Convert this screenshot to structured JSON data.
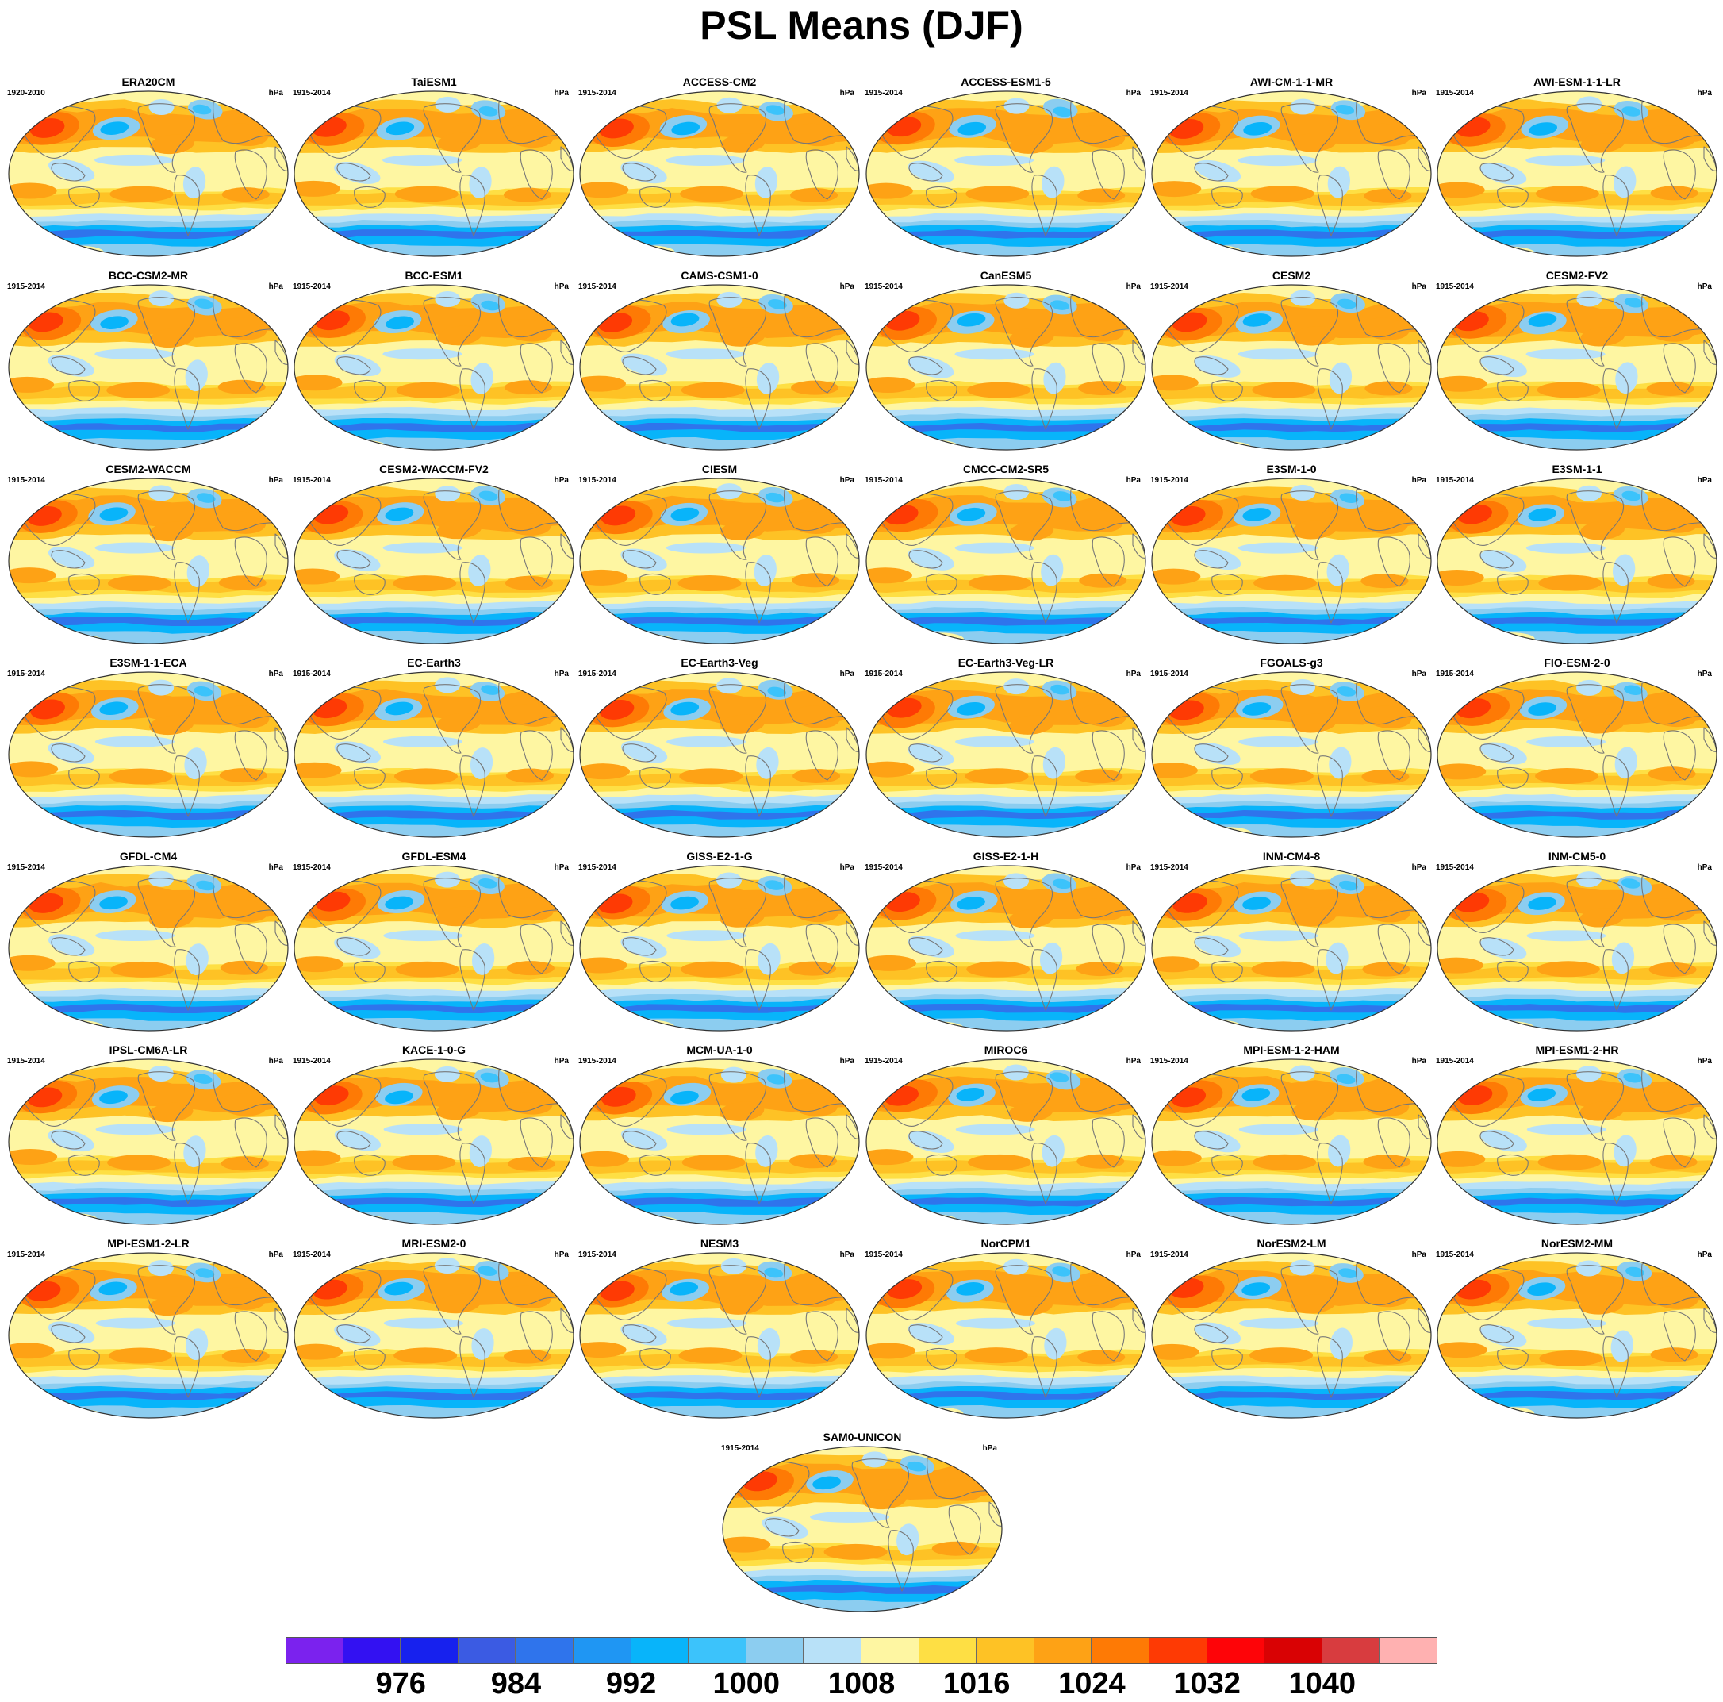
{
  "title": "PSL Means (DJF)",
  "units": "hPa",
  "colorbar": {
    "colors": [
      "#7b22ee",
      "#3311f2",
      "#1721ee",
      "#3b5be3",
      "#2f74ec",
      "#1f96f3",
      "#08b4fa",
      "#3cc3fb",
      "#8ccdf0",
      "#b8e1f8",
      "#fef6a2",
      "#fedf44",
      "#fec225",
      "#fea215",
      "#fe7a05",
      "#fe3a04",
      "#fe0408",
      "#d90204",
      "#d83c3f",
      "#ffb1b1"
    ],
    "labels": [
      "976",
      "984",
      "992",
      "1000",
      "1008",
      "1016",
      "1024",
      "1032",
      "1040"
    ]
  },
  "panels": [
    {
      "name": "ERA20CM",
      "years": "1920-2010"
    },
    {
      "name": "TaiESM1",
      "years": "1915-2014"
    },
    {
      "name": "ACCESS-CM2",
      "years": "1915-2014"
    },
    {
      "name": "ACCESS-ESM1-5",
      "years": "1915-2014"
    },
    {
      "name": "AWI-CM-1-1-MR",
      "years": "1915-2014"
    },
    {
      "name": "AWI-ESM-1-1-LR",
      "years": "1915-2014"
    },
    {
      "name": "BCC-CSM2-MR",
      "years": "1915-2014"
    },
    {
      "name": "BCC-ESM1",
      "years": "1915-2014"
    },
    {
      "name": "CAMS-CSM1-0",
      "years": "1915-2014"
    },
    {
      "name": "CanESM5",
      "years": "1915-2014"
    },
    {
      "name": "CESM2",
      "years": "1915-2014"
    },
    {
      "name": "CESM2-FV2",
      "years": "1915-2014"
    },
    {
      "name": "CESM2-WACCM",
      "years": "1915-2014"
    },
    {
      "name": "CESM2-WACCM-FV2",
      "years": "1915-2014"
    },
    {
      "name": "CIESM",
      "years": "1915-2014"
    },
    {
      "name": "CMCC-CM2-SR5",
      "years": "1915-2014"
    },
    {
      "name": "E3SM-1-0",
      "years": "1915-2014"
    },
    {
      "name": "E3SM-1-1",
      "years": "1915-2014"
    },
    {
      "name": "E3SM-1-1-ECA",
      "years": "1915-2014"
    },
    {
      "name": "EC-Earth3",
      "years": "1915-2014"
    },
    {
      "name": "EC-Earth3-Veg",
      "years": "1915-2014"
    },
    {
      "name": "EC-Earth3-Veg-LR",
      "years": "1915-2014"
    },
    {
      "name": "FGOALS-g3",
      "years": "1915-2014"
    },
    {
      "name": "FIO-ESM-2-0",
      "years": "1915-2014"
    },
    {
      "name": "GFDL-CM4",
      "years": "1915-2014"
    },
    {
      "name": "GFDL-ESM4",
      "years": "1915-2014"
    },
    {
      "name": "GISS-E2-1-G",
      "years": "1915-2014"
    },
    {
      "name": "GISS-E2-1-H",
      "years": "1915-2014"
    },
    {
      "name": "INM-CM4-8",
      "years": "1915-2014"
    },
    {
      "name": "INM-CM5-0",
      "years": "1915-2014"
    },
    {
      "name": "IPSL-CM6A-LR",
      "years": "1915-2014"
    },
    {
      "name": "KACE-1-0-G",
      "years": "1915-2014"
    },
    {
      "name": "MCM-UA-1-0",
      "years": "1915-2014"
    },
    {
      "name": "MIROC6",
      "years": "1915-2014"
    },
    {
      "name": "MPI-ESM-1-2-HAM",
      "years": "1915-2014"
    },
    {
      "name": "MPI-ESM1-2-HR",
      "years": "1915-2014"
    },
    {
      "name": "MPI-ESM1-2-LR",
      "years": "1915-2014"
    },
    {
      "name": "MRI-ESM2-0",
      "years": "1915-2014"
    },
    {
      "name": "NESM3",
      "years": "1915-2014"
    },
    {
      "name": "NorCPM1",
      "years": "1915-2014"
    },
    {
      "name": "NorESM2-LM",
      "years": "1915-2014"
    },
    {
      "name": "NorESM2-MM",
      "years": "1915-2014"
    },
    {
      "name": "SAM0-UNICON",
      "years": "1915-2014"
    }
  ]
}
